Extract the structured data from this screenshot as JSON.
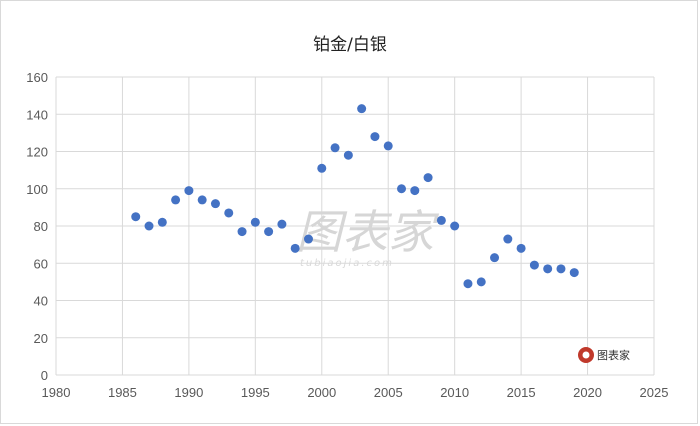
{
  "chart_data": {
    "type": "scatter",
    "title": "铂金/白银",
    "xlabel": "",
    "ylabel": "",
    "xlim": [
      1980,
      2025
    ],
    "ylim": [
      0,
      160
    ],
    "x_ticks": [
      1980,
      1985,
      1990,
      1995,
      2000,
      2005,
      2010,
      2015,
      2020,
      2025
    ],
    "y_ticks": [
      0,
      20,
      40,
      60,
      80,
      100,
      120,
      140,
      160
    ],
    "grid": "major both",
    "marker_color": "#4472C4",
    "points": [
      {
        "x": 1986,
        "y": 85
      },
      {
        "x": 1987,
        "y": 80
      },
      {
        "x": 1988,
        "y": 82
      },
      {
        "x": 1989,
        "y": 94
      },
      {
        "x": 1990,
        "y": 99
      },
      {
        "x": 1991,
        "y": 94
      },
      {
        "x": 1992,
        "y": 92
      },
      {
        "x": 1993,
        "y": 87
      },
      {
        "x": 1994,
        "y": 77
      },
      {
        "x": 1995,
        "y": 82
      },
      {
        "x": 1996,
        "y": 77
      },
      {
        "x": 1997,
        "y": 81
      },
      {
        "x": 1998,
        "y": 68
      },
      {
        "x": 1999,
        "y": 73
      },
      {
        "x": 2000,
        "y": 111
      },
      {
        "x": 2001,
        "y": 122
      },
      {
        "x": 2002,
        "y": 118
      },
      {
        "x": 2003,
        "y": 143
      },
      {
        "x": 2004,
        "y": 128
      },
      {
        "x": 2005,
        "y": 123
      },
      {
        "x": 2006,
        "y": 100
      },
      {
        "x": 2007,
        "y": 99
      },
      {
        "x": 2008,
        "y": 106
      },
      {
        "x": 2009,
        "y": 83
      },
      {
        "x": 2010,
        "y": 80
      },
      {
        "x": 2011,
        "y": 49
      },
      {
        "x": 2012,
        "y": 50
      },
      {
        "x": 2013,
        "y": 63
      },
      {
        "x": 2014,
        "y": 73
      },
      {
        "x": 2015,
        "y": 68
      },
      {
        "x": 2016,
        "y": 59
      },
      {
        "x": 2017,
        "y": 57
      },
      {
        "x": 2018,
        "y": 57
      },
      {
        "x": 2019,
        "y": 55
      }
    ]
  },
  "watermark": {
    "text": "图表家",
    "sub": "tubiaojia.com"
  },
  "logo": {
    "text": "图表家"
  }
}
